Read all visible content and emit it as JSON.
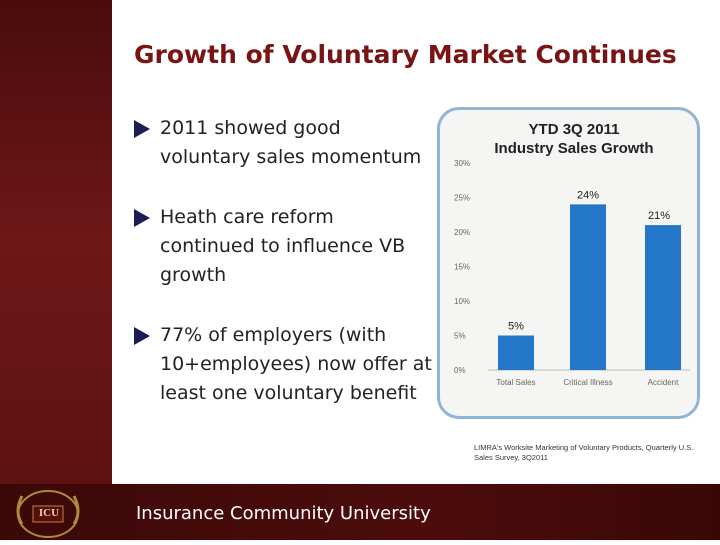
{
  "slide": {
    "title": "Growth of Voluntary Market Continues",
    "bullets": [
      "2011 showed good voluntary sales momentum",
      "Heath care reform continued to influence VB growth",
      "77% of employers (with 10+employees) now offer at least one voluntary benefit"
    ],
    "source": "LIMRA's Worksite Marketing of Voluntary Products, Quarterly U.S. Sales Survey, 3Q2011",
    "footer": "Insurance Community University",
    "logo_text": "ICU"
  },
  "colors": {
    "bar": "#2476c8",
    "title": "#7a1414",
    "panel_border": "#8fb4d6",
    "footer": "#4d0c0c"
  },
  "chart_data": {
    "type": "bar",
    "title": "YTD 3Q 2011\nIndustry Sales Growth",
    "categories": [
      "Total Sales",
      "Critical Illness",
      "Accident"
    ],
    "values": [
      5,
      24,
      21
    ],
    "data_labels": [
      "5%",
      "24%",
      "21%"
    ],
    "yticks": [
      "0%",
      "5%",
      "10%",
      "15%",
      "20%",
      "25%",
      "30%"
    ],
    "ylim": [
      0,
      30
    ],
    "xlabel": "",
    "ylabel": "",
    "grid": false,
    "legend": "none"
  }
}
